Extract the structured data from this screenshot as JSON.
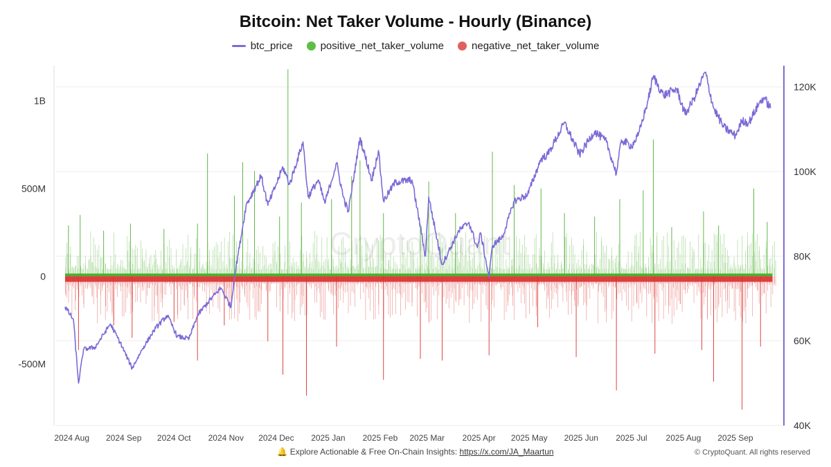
{
  "colors": {
    "price": "#7b6bd6",
    "positive": "#4caf2f",
    "negative": "#d9302c",
    "grid": "#eeeeee",
    "axis_left": "#dddddd",
    "axis_right": "#7b6bd6"
  },
  "footer": {
    "icon": "bell-icon",
    "icon_glyph": "🔔",
    "text": "Explore Actionable & Free On-Chain Insights:",
    "link": "https://x.com/JA_Maartun",
    "copyright": "© CryptoQuant. All rights reserved"
  },
  "watermark": "CryptoQuant",
  "chart_data": {
    "type": "line",
    "title": "Bitcoin: Net Taker Volume - Hourly (Binance)",
    "legend": [
      {
        "name": "btc_price",
        "marker": "line",
        "color": "#7b6bd6"
      },
      {
        "name": "positive_net_taker_volume",
        "marker": "dot",
        "color": "#4caf2f"
      },
      {
        "name": "negative_net_taker_volume",
        "marker": "dot",
        "color": "#d9302c"
      }
    ],
    "legend_position": "top-center",
    "x_range": [
      "2024-07-28",
      "2025-09-25"
    ],
    "x_ticks": [
      {
        "date": "2024-08-01",
        "label": "2024 Aug"
      },
      {
        "date": "2024-09-01",
        "label": "2024 Sep"
      },
      {
        "date": "2024-10-01",
        "label": "2024 Oct"
      },
      {
        "date": "2024-11-01",
        "label": "2024 Nov"
      },
      {
        "date": "2024-12-01",
        "label": "2024 Dec"
      },
      {
        "date": "2025-01-01",
        "label": "2025 Jan"
      },
      {
        "date": "2025-02-01",
        "label": "2025 Feb"
      },
      {
        "date": "2025-03-01",
        "label": "2025 Mar"
      },
      {
        "date": "2025-04-01",
        "label": "2025 Apr"
      },
      {
        "date": "2025-05-01",
        "label": "2025 May"
      },
      {
        "date": "2025-06-01",
        "label": "2025 Jun"
      },
      {
        "date": "2025-07-01",
        "label": "2025 Jul"
      },
      {
        "date": "2025-08-01",
        "label": "2025 Aug"
      },
      {
        "date": "2025-09-01",
        "label": "2025 Sep"
      }
    ],
    "y_left": {
      "range": [
        -850000000,
        1200000000
      ],
      "ticks": [
        {
          "value": 1000000000,
          "label": "1B"
        },
        {
          "value": 500000000,
          "label": "500M"
        },
        {
          "value": 0,
          "label": "0"
        },
        {
          "value": -500000000,
          "label": "-500M"
        }
      ]
    },
    "y_right": {
      "range": [
        40000,
        125000
      ],
      "ticks": [
        {
          "value": 120000,
          "label": "120K"
        },
        {
          "value": 100000,
          "label": "100K"
        },
        {
          "value": 80000,
          "label": "80K"
        },
        {
          "value": 60000,
          "label": "60K"
        },
        {
          "value": 40000,
          "label": "40K"
        }
      ]
    },
    "grid": true,
    "btc_price": [
      [
        "2024-07-28",
        68000
      ],
      [
        "2024-08-02",
        65000
      ],
      [
        "2024-08-05",
        50000
      ],
      [
        "2024-08-08",
        58000
      ],
      [
        "2024-08-15",
        58500
      ],
      [
        "2024-08-24",
        64000
      ],
      [
        "2024-08-30",
        59500
      ],
      [
        "2024-09-06",
        53500
      ],
      [
        "2024-09-12",
        58000
      ],
      [
        "2024-09-20",
        63000
      ],
      [
        "2024-09-27",
        66000
      ],
      [
        "2024-10-03",
        61000
      ],
      [
        "2024-10-10",
        60500
      ],
      [
        "2024-10-15",
        66000
      ],
      [
        "2024-10-21",
        69000
      ],
      [
        "2024-10-29",
        72500
      ],
      [
        "2024-11-04",
        68000
      ],
      [
        "2024-11-06",
        75000
      ],
      [
        "2024-11-11",
        87000
      ],
      [
        "2024-11-13",
        92000
      ],
      [
        "2024-11-22",
        99000
      ],
      [
        "2024-11-26",
        92000
      ],
      [
        "2024-12-01",
        97000
      ],
      [
        "2024-12-05",
        101000
      ],
      [
        "2024-12-09",
        97000
      ],
      [
        "2024-12-17",
        107000
      ],
      [
        "2024-12-20",
        94000
      ],
      [
        "2024-12-26",
        98000
      ],
      [
        "2024-12-30",
        92500
      ],
      [
        "2025-01-06",
        102000
      ],
      [
        "2025-01-10",
        94000
      ],
      [
        "2025-01-13",
        90500
      ],
      [
        "2025-01-20",
        108000
      ],
      [
        "2025-01-27",
        98000
      ],
      [
        "2025-01-31",
        105000
      ],
      [
        "2025-02-03",
        93000
      ],
      [
        "2025-02-10",
        97500
      ],
      [
        "2025-02-20",
        98000
      ],
      [
        "2025-02-25",
        87000
      ],
      [
        "2025-02-28",
        80000
      ],
      [
        "2025-03-02",
        94000
      ],
      [
        "2025-03-10",
        78000
      ],
      [
        "2025-03-20",
        86000
      ],
      [
        "2025-03-26",
        88000
      ],
      [
        "2025-03-31",
        82000
      ],
      [
        "2025-04-02",
        85500
      ],
      [
        "2025-04-07",
        75000
      ],
      [
        "2025-04-09",
        82500
      ],
      [
        "2025-04-15",
        84500
      ],
      [
        "2025-04-22",
        93000
      ],
      [
        "2025-04-30",
        94500
      ],
      [
        "2025-05-08",
        103000
      ],
      [
        "2025-05-12",
        104000
      ],
      [
        "2025-05-22",
        111500
      ],
      [
        "2025-05-31",
        104000
      ],
      [
        "2025-06-09",
        109500
      ],
      [
        "2025-06-16",
        107000
      ],
      [
        "2025-06-22",
        99500
      ],
      [
        "2025-06-25",
        107500
      ],
      [
        "2025-07-01",
        106000
      ],
      [
        "2025-07-05",
        108500
      ],
      [
        "2025-07-11",
        117000
      ],
      [
        "2025-07-14",
        122500
      ],
      [
        "2025-07-20",
        118000
      ],
      [
        "2025-07-28",
        119500
      ],
      [
        "2025-08-02",
        113500
      ],
      [
        "2025-08-07",
        117000
      ],
      [
        "2025-08-14",
        123500
      ],
      [
        "2025-08-19",
        115000
      ],
      [
        "2025-08-25",
        110500
      ],
      [
        "2025-09-01",
        108500
      ],
      [
        "2025-09-05",
        112000
      ],
      [
        "2025-09-09",
        111500
      ],
      [
        "2025-09-15",
        116000
      ],
      [
        "2025-09-18",
        117500
      ],
      [
        "2025-09-22",
        115000
      ]
    ],
    "positive_net_taker_volume": [
      [
        "2024-07-30",
        290000000
      ],
      [
        "2024-08-06",
        350000000
      ],
      [
        "2024-08-20",
        260000000
      ],
      [
        "2024-09-05",
        300000000
      ],
      [
        "2024-09-25",
        270000000
      ],
      [
        "2024-10-15",
        300000000
      ],
      [
        "2024-10-21",
        700000000
      ],
      [
        "2024-11-06",
        460000000
      ],
      [
        "2024-11-11",
        650000000
      ],
      [
        "2024-11-18",
        600000000
      ],
      [
        "2024-12-03",
        340000000
      ],
      [
        "2024-12-08",
        1180000000
      ],
      [
        "2024-12-16",
        420000000
      ],
      [
        "2025-01-03",
        440000000
      ],
      [
        "2025-01-15",
        570000000
      ],
      [
        "2025-01-20",
        660000000
      ],
      [
        "2025-02-03",
        360000000
      ],
      [
        "2025-02-25",
        300000000
      ],
      [
        "2025-03-02",
        540000000
      ],
      [
        "2025-03-18",
        360000000
      ],
      [
        "2025-04-09",
        710000000
      ],
      [
        "2025-04-22",
        520000000
      ],
      [
        "2025-05-08",
        500000000
      ],
      [
        "2025-05-22",
        360000000
      ],
      [
        "2025-06-09",
        340000000
      ],
      [
        "2025-06-24",
        440000000
      ],
      [
        "2025-07-08",
        490000000
      ],
      [
        "2025-07-14",
        780000000
      ],
      [
        "2025-07-25",
        280000000
      ],
      [
        "2025-08-13",
        370000000
      ],
      [
        "2025-08-22",
        290000000
      ],
      [
        "2025-09-12",
        500000000
      ],
      [
        "2025-09-20",
        310000000
      ]
    ],
    "negative_net_taker_volume": [
      [
        "2024-08-05",
        -420000000
      ],
      [
        "2024-08-26",
        -280000000
      ],
      [
        "2024-09-06",
        -350000000
      ],
      [
        "2024-10-01",
        -260000000
      ],
      [
        "2024-10-15",
        -480000000
      ],
      [
        "2024-10-31",
        -280000000
      ],
      [
        "2024-11-26",
        -370000000
      ],
      [
        "2024-12-05",
        -560000000
      ],
      [
        "2024-12-19",
        -680000000
      ],
      [
        "2025-01-06",
        -400000000
      ],
      [
        "2025-02-03",
        -590000000
      ],
      [
        "2025-02-25",
        -470000000
      ],
      [
        "2025-03-10",
        -480000000
      ],
      [
        "2025-04-07",
        -450000000
      ],
      [
        "2025-05-06",
        -290000000
      ],
      [
        "2025-05-29",
        -460000000
      ],
      [
        "2025-06-22",
        -650000000
      ],
      [
        "2025-07-15",
        -440000000
      ],
      [
        "2025-08-12",
        -420000000
      ],
      [
        "2025-08-19",
        -600000000
      ],
      [
        "2025-09-05",
        -760000000
      ],
      [
        "2025-09-16",
        -400000000
      ]
    ]
  }
}
